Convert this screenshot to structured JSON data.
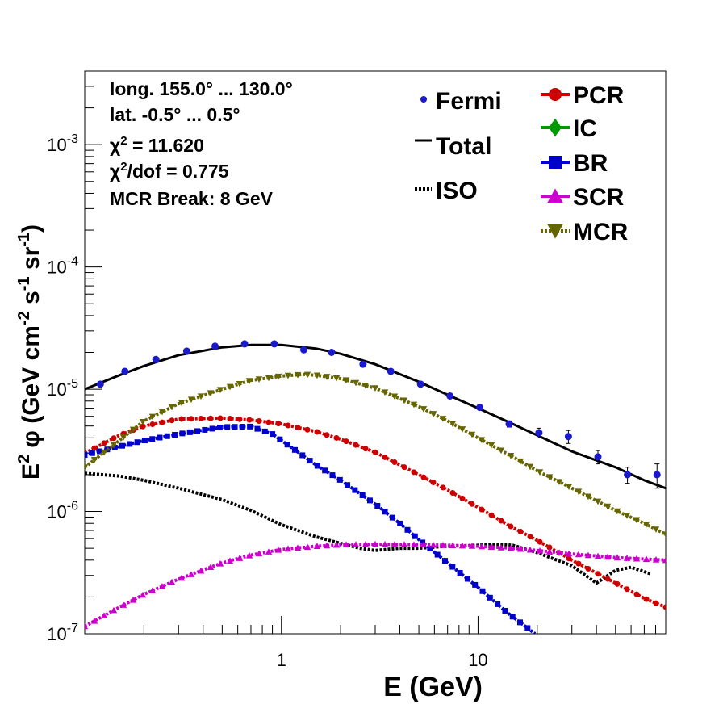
{
  "chart_data": {
    "type": "line",
    "title": "",
    "xlabel": "E (GeV)",
    "ylabel": "E² φ (GeV cm⁻² s⁻¹ sr⁻¹)",
    "xscale": "log",
    "yscale": "log",
    "xlim": [
      0.1,
      90
    ],
    "ylim": [
      1e-07,
      0.004
    ],
    "x_tick_labels": [
      "1",
      "10"
    ],
    "y_tick_labels": [
      {
        "base": "10",
        "exp": "-7"
      },
      {
        "base": "10",
        "exp": "-6"
      },
      {
        "base": "10",
        "exp": "-5"
      },
      {
        "base": "10",
        "exp": "-4"
      },
      {
        "base": "10",
        "exp": "-3"
      }
    ],
    "info_lines": [
      "long. 155.0° ... 130.0°",
      "lat. -0.5° ... 0.5°",
      "χ² = 11.620",
      "χ²/dof = 0.775",
      "MCR Break:  8 GeV"
    ],
    "legend_left": [
      {
        "label": "Fermi",
        "color": "#1a1acc",
        "style": "points"
      },
      {
        "label": "Total",
        "color": "#000000",
        "style": "solid"
      },
      {
        "label": "ISO",
        "color": "#000000",
        "style": "dotted"
      }
    ],
    "legend_right": [
      {
        "label": "PCR",
        "color": "#cc0000",
        "marker": "circle"
      },
      {
        "label": "IC",
        "color": "#009900",
        "marker": "diamond"
      },
      {
        "label": "BR",
        "color": "#0000cc",
        "marker": "square"
      },
      {
        "label": "SCR",
        "color": "#cc00cc",
        "marker": "triangle-up"
      },
      {
        "label": "MCR",
        "color": "#666600",
        "marker": "triangle-down"
      }
    ],
    "fermi": {
      "x": [
        0.12,
        0.16,
        0.23,
        0.33,
        0.46,
        0.65,
        0.92,
        1.3,
        1.8,
        2.6,
        3.6,
        5.1,
        7.2,
        10.2,
        14.4,
        20.4,
        28.8,
        40.7,
        57.5,
        81.3
      ],
      "y": [
        1.1e-05,
        1.4e-05,
        1.75e-05,
        2.05e-05,
        2.25e-05,
        2.35e-05,
        2.35e-05,
        2.1e-05,
        2e-05,
        1.6e-05,
        1.4e-05,
        1.1e-05,
        8.8e-06,
        7.1e-06,
        5.2e-06,
        4.4e-06,
        4.1e-06,
        2.8e-06,
        2e-06,
        2e-06
      ],
      "err": [
        0,
        0,
        0,
        0,
        0,
        0,
        0,
        0,
        0,
        0,
        0,
        0,
        0,
        0,
        3e-07,
        4e-07,
        5e-07,
        3.5e-07,
        3e-07,
        4.5e-07
      ],
      "color": "#1a1acc"
    },
    "series": [
      {
        "name": "Total",
        "color": "#000000",
        "style": "solid",
        "x": [
          0.1,
          0.15,
          0.2,
          0.3,
          0.5,
          0.7,
          1.0,
          1.5,
          2,
          3,
          5,
          7,
          10,
          15,
          20,
          30,
          50,
          70,
          90
        ],
        "y": [
          1e-05,
          1.3e-05,
          1.55e-05,
          1.9e-05,
          2.2e-05,
          2.3e-05,
          2.3e-05,
          2.15e-05,
          1.95e-05,
          1.6e-05,
          1.15e-05,
          9e-06,
          7e-06,
          5.2e-06,
          4.2e-06,
          3.1e-06,
          2.3e-06,
          1.8e-06,
          1.55e-06
        ]
      },
      {
        "name": "ISO",
        "color": "#000000",
        "style": "dotted",
        "x": [
          0.1,
          0.15,
          0.2,
          0.3,
          0.5,
          0.7,
          1.0,
          1.5,
          2,
          2.5,
          3,
          4,
          5,
          7,
          10,
          12,
          15,
          20,
          30,
          40,
          50,
          60,
          75
        ],
        "y": [
          2.05e-06,
          1.95e-06,
          1.8e-06,
          1.55e-06,
          1.25e-06,
          1.02e-06,
          7.8e-07,
          6.2e-07,
          5.5e-07,
          5e-07,
          4.8e-07,
          5e-07,
          5e-07,
          5.2e-07,
          5.3e-07,
          5.4e-07,
          5.3e-07,
          4.6e-07,
          3.6e-07,
          2.6e-07,
          3.3e-07,
          3.5e-07,
          3.1e-07
        ]
      },
      {
        "name": "PCR",
        "color": "#cc0000",
        "style": "dotted",
        "marker": "circle",
        "x": [
          0.1,
          0.15,
          0.2,
          0.3,
          0.5,
          0.7,
          1.0,
          1.5,
          2,
          3,
          5,
          7,
          10,
          15,
          20,
          30,
          50,
          70,
          90
        ],
        "y": [
          3e-06,
          4.2e-06,
          5e-06,
          5.7e-06,
          5.8e-06,
          5.6e-06,
          5.2e-06,
          4.5e-06,
          3.9e-06,
          3.05e-06,
          2e-06,
          1.5e-06,
          1.08e-06,
          7.4e-07,
          5.8e-07,
          4e-07,
          2.6e-07,
          1.95e-07,
          1.65e-07
        ]
      },
      {
        "name": "BR",
        "color": "#0000cc",
        "style": "dotted",
        "marker": "square",
        "x": [
          0.1,
          0.15,
          0.2,
          0.3,
          0.5,
          0.7,
          0.9,
          1.2,
          1.5,
          2,
          3,
          4,
          5,
          7,
          10,
          14,
          19.5
        ],
        "y": [
          2.9e-06,
          3.4e-06,
          3.8e-06,
          4.3e-06,
          4.9e-06,
          4.95e-06,
          4.3e-06,
          3.1e-06,
          2.4e-06,
          1.8e-06,
          1.15e-06,
          8e-07,
          5.9e-07,
          3.8e-07,
          2.4e-07,
          1.5e-07,
          1e-07
        ]
      },
      {
        "name": "SCR",
        "color": "#cc00cc",
        "style": "dotted",
        "marker": "triangle-up",
        "x": [
          0.1,
          0.15,
          0.2,
          0.3,
          0.5,
          0.7,
          1.0,
          1.5,
          2,
          3,
          5,
          7,
          10,
          15,
          20,
          30,
          50,
          90
        ],
        "y": [
          1.15e-07,
          1.65e-07,
          2.1e-07,
          2.8e-07,
          3.8e-07,
          4.4e-07,
          4.9e-07,
          5.2e-07,
          5.35e-07,
          5.4e-07,
          5.35e-07,
          5.3e-07,
          5.2e-07,
          5e-07,
          4.8e-07,
          4.5e-07,
          4.2e-07,
          4e-07
        ]
      },
      {
        "name": "MCR",
        "color": "#666600",
        "style": "dotted",
        "marker": "triangle-down",
        "x": [
          0.1,
          0.15,
          0.2,
          0.3,
          0.5,
          0.7,
          1.0,
          1.3,
          1.5,
          2,
          3,
          5,
          7,
          10,
          15,
          20,
          30,
          50,
          70,
          90
        ],
        "y": [
          2.3e-06,
          3.8e-06,
          5.5e-06,
          7.6e-06,
          1e-05,
          1.18e-05,
          1.28e-05,
          1.32e-05,
          1.3e-05,
          1.22e-05,
          1.02e-05,
          7.2e-06,
          5.5e-06,
          4e-06,
          2.8e-06,
          2.15e-06,
          1.55e-06,
          1.02e-06,
          8e-07,
          6.5e-07
        ]
      }
    ]
  }
}
